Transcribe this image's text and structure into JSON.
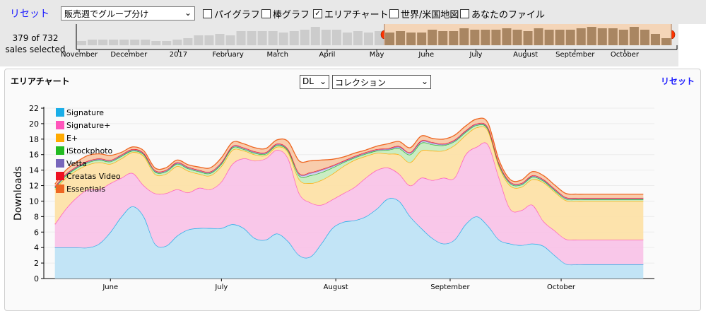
{
  "topbar": {
    "reset_label": "リセット",
    "group_by_value": "販売週でグループ分け",
    "options": [
      {
        "label": "パイグラフ",
        "checked": false
      },
      {
        "label": "棒グラフ",
        "checked": false
      },
      {
        "label": "エリアチャート",
        "checked": true
      },
      {
        "label": "世界/米国地図",
        "checked": false
      },
      {
        "label": "あなたのファイル",
        "checked": false
      }
    ]
  },
  "timeline": {
    "selected_count": "379 of 732",
    "selected_suffix": "sales selected",
    "months": [
      "November",
      "December",
      "2017",
      "February",
      "March",
      "April",
      "May",
      "June",
      "July",
      "August",
      "September",
      "October"
    ],
    "weekly_bars": [
      3,
      4,
      4,
      4,
      4,
      4,
      4,
      3,
      3,
      4,
      5,
      7,
      7,
      8,
      7,
      10,
      10,
      10,
      10,
      9,
      10,
      11,
      13,
      11,
      11,
      9,
      10,
      9,
      10,
      9,
      10,
      9,
      9,
      11,
      10,
      10,
      12,
      11,
      11,
      11,
      12,
      11,
      10,
      12,
      11,
      11,
      11,
      12,
      13,
      12,
      12,
      11,
      13,
      11,
      8,
      5
    ],
    "selection_start_index": 29,
    "selection_end_index": 55,
    "colors": {
      "bar": "#cccccc",
      "selected_bar": "#a98662",
      "selected_bg": "#f4d5b8",
      "handle": "#ff3300"
    }
  },
  "panel": {
    "title": "エリアチャート",
    "metric_value": "DL",
    "collection_value": "コレクション",
    "reset_label": "リセット"
  },
  "chart_data": {
    "type": "area",
    "stacked": true,
    "ylabel": "Downloads",
    "ylim": [
      0,
      22
    ],
    "yticks": [
      0,
      2,
      4,
      6,
      8,
      10,
      12,
      14,
      16,
      18,
      20,
      22
    ],
    "x_month_labels": [
      {
        "label": "June",
        "x": 5
      },
      {
        "label": "July",
        "x": 15
      },
      {
        "label": "August",
        "x": 25.3
      },
      {
        "label": "September",
        "x": 35.6
      },
      {
        "label": "October",
        "x": 45.6
      }
    ],
    "xlim": [
      -1,
      54
    ],
    "x": [
      0,
      1,
      2,
      3,
      4,
      5,
      6,
      7,
      8,
      9,
      10,
      11,
      12,
      13,
      14,
      15,
      16,
      17,
      18,
      19,
      20,
      21,
      22,
      23,
      24,
      25,
      26,
      27,
      28,
      29,
      30,
      31,
      32,
      33,
      34,
      35,
      36,
      37,
      38,
      39,
      40,
      41,
      42,
      43,
      44,
      45,
      46,
      47,
      48,
      49,
      50,
      51,
      52,
      53
    ],
    "legend_position": "top-left",
    "series": [
      {
        "name": "Signature",
        "color": "#1aaee8",
        "fill": "#bfe3f5",
        "values": [
          4,
          4,
          4,
          4,
          4.5,
          6,
          8,
          9.3,
          8,
          4.5,
          4.2,
          5.5,
          6.3,
          6.5,
          6.5,
          6.5,
          7,
          6.5,
          5.2,
          5,
          5.8,
          4.8,
          3,
          2.8,
          4.5,
          6.5,
          7.3,
          7.5,
          8,
          9,
          10.3,
          10,
          8,
          6.5,
          5.2,
          4.5,
          5,
          7,
          8,
          6.8,
          5,
          4.5,
          4.3,
          4.5,
          4.2,
          3,
          1.9,
          1.8,
          1.8,
          1.8,
          1.8,
          1.8,
          1.8,
          1.8
        ]
      },
      {
        "name": "Signature+",
        "color": "#ff55bb",
        "fill": "#f9c4e8",
        "values": [
          3,
          5,
          6.5,
          7.5,
          7,
          6.3,
          5,
          4.3,
          4,
          6.5,
          6.8,
          6,
          4.8,
          5.2,
          5,
          6,
          7.8,
          9,
          10,
          10.5,
          10.8,
          10.7,
          8,
          7,
          5,
          3.7,
          3.7,
          4.3,
          5,
          5,
          4,
          3.5,
          4,
          6.5,
          7.5,
          8.5,
          8,
          9,
          9,
          10.5,
          8,
          4.5,
          4.5,
          5,
          3.2,
          3.2,
          3.2,
          3.2,
          3.2,
          3.2,
          3.2,
          3.2,
          3.2,
          3.2
        ]
      },
      {
        "name": "E+",
        "color": "#ffaa00",
        "fill": "#fde1a8",
        "values": [
          4.5,
          4,
          3.5,
          3.2,
          3.5,
          2.5,
          2.5,
          2.7,
          3.8,
          2.5,
          2.5,
          3,
          2.8,
          1.8,
          1.8,
          2,
          1.8,
          1,
          0.8,
          0.4,
          0.4,
          0.8,
          1.8,
          2.5,
          3.2,
          3.3,
          3.5,
          3.5,
          2.8,
          2.2,
          1.8,
          2.5,
          3,
          3.5,
          3.8,
          3.5,
          4.2,
          2.5,
          2.5,
          1.8,
          1.5,
          3,
          3,
          3.3,
          5,
          5,
          5,
          5,
          5,
          5,
          5,
          5,
          5,
          5
        ]
      },
      {
        "name": "iStockphoto",
        "color": "#22bb22",
        "fill": "#c7ecc0",
        "values": [
          0.2,
          0.3,
          0.3,
          0.3,
          0.3,
          0.3,
          0.3,
          0.2,
          0.2,
          0.3,
          0.3,
          0.3,
          0.3,
          0.3,
          0.3,
          0.3,
          0.3,
          0.2,
          0.2,
          0.2,
          0.2,
          0.2,
          0.5,
          1,
          1,
          0.8,
          0.5,
          0.3,
          0.3,
          0.3,
          0.5,
          0.8,
          1,
          1,
          0.8,
          0.7,
          0.5,
          0.4,
          0.3,
          0.2,
          0.2,
          0.3,
          0.3,
          0.3,
          0.2,
          0.2,
          0.2,
          0.2,
          0.2,
          0.2,
          0.2,
          0.2,
          0.2,
          0.2
        ]
      },
      {
        "name": "Vetta",
        "color": "#7766bb",
        "fill": "#d5cfee",
        "values": [
          0.1,
          0.1,
          0.1,
          0.1,
          0.1,
          0.1,
          0.1,
          0.1,
          0.1,
          0.1,
          0.1,
          0.1,
          0.1,
          0.1,
          0.1,
          0.1,
          0.1,
          0.1,
          0.1,
          0.1,
          0.1,
          0.1,
          0.2,
          0.3,
          0.3,
          0.2,
          0.1,
          0.1,
          0.1,
          0.1,
          0.1,
          0.2,
          0.2,
          0.2,
          0.2,
          0.1,
          0.1,
          0.1,
          0.1,
          0.1,
          0.1,
          0.1,
          0.1,
          0.1,
          0.1,
          0.1,
          0.1,
          0.1,
          0.1,
          0.1,
          0.1,
          0.1,
          0.1,
          0.1
        ]
      },
      {
        "name": "Creatas Video",
        "color": "#ee1122",
        "fill": "#f5b8bb",
        "values": [
          0.1,
          0.1,
          0.1,
          0.1,
          0.1,
          0.1,
          0.1,
          0.1,
          0.1,
          0.1,
          0.1,
          0.1,
          0.1,
          0.1,
          0.1,
          0.1,
          0.1,
          0.1,
          0.1,
          0.1,
          0.1,
          0.1,
          0.1,
          0.1,
          0.1,
          0.1,
          0.1,
          0.1,
          0.1,
          0.1,
          0.1,
          0.1,
          0.1,
          0.1,
          0.1,
          0.1,
          0.1,
          0.1,
          0.1,
          0.1,
          0.1,
          0.1,
          0.1,
          0.1,
          0.1,
          0.1,
          0.1,
          0.1,
          0.1,
          0.1,
          0.1,
          0.1,
          0.1,
          0.1
        ]
      },
      {
        "name": "Essentials",
        "color": "#ee6622",
        "fill": "#f8c9a8",
        "values": [
          0.3,
          0.5,
          0.6,
          0.7,
          0.6,
          0.6,
          0.3,
          0.3,
          0.3,
          0.3,
          0.3,
          0.3,
          0.3,
          0.4,
          0.5,
          0.6,
          0.5,
          0.5,
          0.5,
          0.5,
          0.5,
          1,
          1.6,
          1.5,
          1.2,
          0.8,
          0.5,
          0.4,
          0.3,
          0.4,
          0.6,
          0.6,
          0.6,
          0.6,
          0.5,
          0.6,
          0.6,
          0.6,
          0.6,
          0.6,
          0.4,
          0.3,
          0.4,
          0.5,
          0.5,
          0.5,
          0.5,
          0.5,
          0.5,
          0.5,
          0.5,
          0.5,
          0.5,
          0.5
        ]
      }
    ]
  }
}
